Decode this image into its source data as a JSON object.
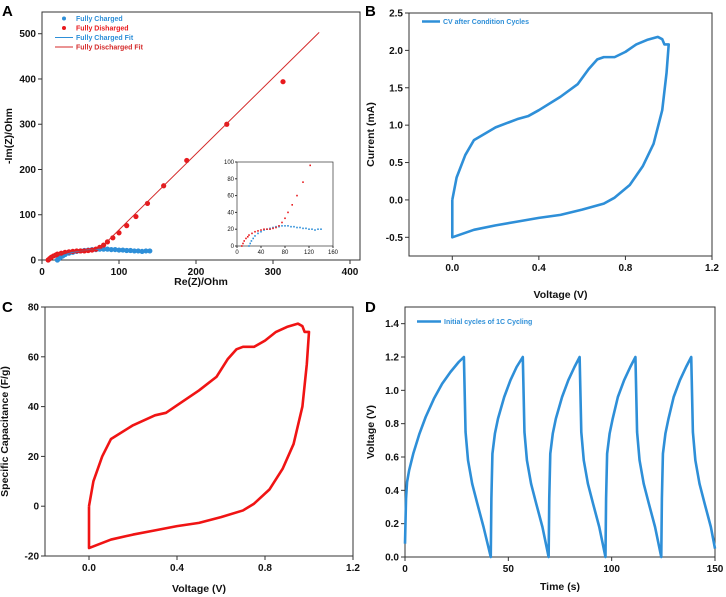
{
  "panel_labels": [
    "A",
    "B",
    "C",
    "D"
  ],
  "chart_data": [
    {
      "type": "scatter",
      "title": "",
      "xlabel": "Re(Z)/Ohm",
      "ylabel": "-Im(Z)/Ohm",
      "xlim": [
        0,
        413
      ],
      "ylim": [
        0,
        548
      ],
      "xticks": [
        0,
        100,
        200,
        300,
        400
      ],
      "xtick_labels": [
        "0",
        "100",
        "200",
        "300",
        "400"
      ],
      "yticks": [
        0,
        100,
        200,
        300,
        400,
        500
      ],
      "ytick_labels": [
        "0",
        "100",
        "200",
        "300",
        "400",
        "500"
      ],
      "legend_position": "top-left",
      "series": [
        {
          "name": "Fully Charged",
          "kind": "scatter",
          "color": "#2e8fd8",
          "points": [
            [
              20,
              0
            ],
            [
              22,
              3
            ],
            [
              24,
              6
            ],
            [
              27,
              9
            ],
            [
              30,
              12
            ],
            [
              35,
              15
            ],
            [
              40,
              17
            ],
            [
              45,
              19
            ],
            [
              50,
              20
            ],
            [
              55,
              21
            ],
            [
              60,
              22
            ],
            [
              65,
              23
            ],
            [
              70,
              23
            ],
            [
              75,
              24
            ],
            [
              80,
              24
            ],
            [
              85,
              24
            ],
            [
              90,
              23
            ],
            [
              95,
              23
            ],
            [
              100,
              22
            ],
            [
              105,
              22
            ],
            [
              110,
              21
            ],
            [
              115,
              21
            ],
            [
              120,
              20
            ],
            [
              125,
              20
            ],
            [
              130,
              19
            ],
            [
              135,
              20
            ],
            [
              140,
              20
            ]
          ]
        },
        {
          "name": "Fully Disharged",
          "kind": "scatter",
          "color": "#e8191d",
          "points": [
            [
              8,
              0
            ],
            [
              10,
              3
            ],
            [
              12,
              6
            ],
            [
              15,
              9
            ],
            [
              18,
              11
            ],
            [
              20,
              13
            ],
            [
              25,
              15
            ],
            [
              30,
              17
            ],
            [
              35,
              18
            ],
            [
              40,
              19
            ],
            [
              45,
              20
            ],
            [
              50,
              20
            ],
            [
              55,
              20
            ],
            [
              60,
              21
            ],
            [
              65,
              22
            ],
            [
              70,
              24
            ],
            [
              75,
              28
            ],
            [
              80,
              33
            ],
            [
              85,
              40
            ],
            [
              92,
              49
            ],
            [
              100,
              60
            ],
            [
              110,
              76
            ],
            [
              122,
              96
            ],
            [
              137,
              125
            ],
            [
              158,
              164
            ],
            [
              188,
              220
            ],
            [
              240,
              300
            ],
            [
              313,
              394
            ]
          ]
        },
        {
          "name": "Fully Charged Fit",
          "kind": "line",
          "color": "#2e8fd8",
          "points": [
            [
              20,
              0
            ],
            [
              25,
              7
            ],
            [
              30,
              12
            ],
            [
              40,
              17
            ],
            [
              50,
              20
            ],
            [
              60,
              22
            ],
            [
              75,
              24
            ],
            [
              90,
              23
            ],
            [
              110,
              21
            ],
            [
              140,
              19.5
            ]
          ]
        },
        {
          "name": "Fully Discharged Fit",
          "kind": "line",
          "color": "#d42a2a",
          "points": [
            [
              8,
              0
            ],
            [
              12,
              6
            ],
            [
              20,
              13
            ],
            [
              30,
              17
            ],
            [
              45,
              20
            ],
            [
              60,
              21
            ],
            [
              70,
              24
            ],
            [
              80,
              33
            ],
            [
              360,
              503
            ]
          ]
        }
      ],
      "inset": {
        "xlim": [
          0,
          160
        ],
        "ylim": [
          0,
          100
        ],
        "xticks": [
          0,
          40,
          80,
          120,
          160
        ],
        "xtick_labels": [
          "0",
          "40",
          "80",
          "120",
          "160"
        ],
        "yticks": [
          0,
          20,
          40,
          60,
          80,
          100
        ],
        "ytick_labels": [
          "0",
          "20",
          "40",
          "60",
          "80",
          "100"
        ]
      }
    },
    {
      "type": "line",
      "title": "",
      "xlabel": "Voltage (V)",
      "ylabel": "Current (mA)",
      "xlim": [
        -0.2,
        1.2
      ],
      "ylim": [
        -0.75,
        2.5
      ],
      "xticks": [
        0,
        0.4,
        0.8,
        1.2
      ],
      "xtick_labels": [
        "0.0",
        "0.4",
        "0.8",
        "1.2"
      ],
      "yticks": [
        -0.5,
        0,
        0.5,
        1,
        1.5,
        2,
        2.5
      ],
      "ytick_labels": [
        "-0.5",
        "0.0",
        "0.5",
        "1.0",
        "1.5",
        "2.0",
        "2.5"
      ],
      "legend_position": "top-left",
      "series": [
        {
          "name": "CV after Condition Cycles",
          "kind": "line",
          "color": "#2e8fd8",
          "points": [
            [
              0,
              0
            ],
            [
              0.02,
              0.3
            ],
            [
              0.06,
              0.6
            ],
            [
              0.1,
              0.8
            ],
            [
              0.2,
              0.97
            ],
            [
              0.3,
              1.08
            ],
            [
              0.35,
              1.12
            ],
            [
              0.4,
              1.2
            ],
            [
              0.5,
              1.38
            ],
            [
              0.58,
              1.55
            ],
            [
              0.63,
              1.75
            ],
            [
              0.67,
              1.88
            ],
            [
              0.7,
              1.91
            ],
            [
              0.75,
              1.91
            ],
            [
              0.8,
              1.98
            ],
            [
              0.85,
              2.08
            ],
            [
              0.9,
              2.14
            ],
            [
              0.95,
              2.18
            ],
            [
              0.97,
              2.15
            ],
            [
              0.98,
              2.08
            ],
            [
              1.0,
              2.08
            ],
            [
              0.99,
              1.7
            ],
            [
              0.97,
              1.2
            ],
            [
              0.93,
              0.75
            ],
            [
              0.88,
              0.45
            ],
            [
              0.82,
              0.2
            ],
            [
              0.75,
              0.03
            ],
            [
              0.7,
              -0.05
            ],
            [
              0.6,
              -0.13
            ],
            [
              0.5,
              -0.2
            ],
            [
              0.4,
              -0.24
            ],
            [
              0.3,
              -0.29
            ],
            [
              0.2,
              -0.34
            ],
            [
              0.1,
              -0.4
            ],
            [
              0,
              -0.5
            ],
            [
              0,
              0
            ]
          ]
        }
      ]
    },
    {
      "type": "line",
      "title": "",
      "xlabel": "Voltage (V)",
      "ylabel": "Specific Capacitance (F/g)",
      "xlim": [
        -0.2,
        1.2
      ],
      "ylim": [
        -20,
        80
      ],
      "xticks": [
        0,
        0.4,
        0.8,
        1.2
      ],
      "xtick_labels": [
        "0.0",
        "0.4",
        "0.8",
        "1.2"
      ],
      "yticks": [
        -20,
        0,
        20,
        40,
        60,
        80
      ],
      "ytick_labels": [
        "-20",
        "0",
        "20",
        "40",
        "60",
        "80"
      ],
      "series": [
        {
          "name": "Specific Capacitance",
          "kind": "line",
          "color": "#f01414",
          "points": [
            [
              0,
              0
            ],
            [
              0.02,
              10
            ],
            [
              0.06,
              20
            ],
            [
              0.1,
              27
            ],
            [
              0.2,
              32.5
            ],
            [
              0.3,
              36.5
            ],
            [
              0.35,
              37.5
            ],
            [
              0.4,
              40.5
            ],
            [
              0.5,
              46.5
            ],
            [
              0.58,
              52
            ],
            [
              0.63,
              59
            ],
            [
              0.67,
              63
            ],
            [
              0.7,
              64
            ],
            [
              0.75,
              64
            ],
            [
              0.8,
              66.5
            ],
            [
              0.85,
              70
            ],
            [
              0.9,
              72
            ],
            [
              0.95,
              73.3
            ],
            [
              0.97,
              72.3
            ],
            [
              0.98,
              70
            ],
            [
              1.0,
              70
            ],
            [
              0.99,
              57
            ],
            [
              0.97,
              40
            ],
            [
              0.93,
              25
            ],
            [
              0.88,
              15
            ],
            [
              0.82,
              6.7
            ],
            [
              0.75,
              1
            ],
            [
              0.7,
              -1.7
            ],
            [
              0.6,
              -4.4
            ],
            [
              0.5,
              -6.7
            ],
            [
              0.4,
              -8
            ],
            [
              0.3,
              -9.7
            ],
            [
              0.2,
              -11.4
            ],
            [
              0.1,
              -13.4
            ],
            [
              0,
              -16.8
            ],
            [
              0,
              0
            ]
          ]
        }
      ]
    },
    {
      "type": "line",
      "title": "",
      "xlabel": "Time (s)",
      "ylabel": "Voltage (V)",
      "xlim": [
        0,
        150
      ],
      "ylim": [
        0,
        1.5
      ],
      "xticks": [
        0,
        50,
        100,
        150
      ],
      "xtick_labels": [
        "0",
        "50",
        "100",
        "150"
      ],
      "yticks": [
        0,
        0.2,
        0.4,
        0.6,
        0.8,
        1.0,
        1.2,
        1.4
      ],
      "ytick_labels": [
        "0.0",
        "0.2",
        "0.4",
        "0.6",
        "0.8",
        "1.0",
        "1.2",
        "1.4"
      ],
      "legend_position": "top-left",
      "series": [
        {
          "name": "Initial cycles of 1C Cycling",
          "kind": "line",
          "color": "#2e8fd8",
          "points": [
            [
              0,
              0.08
            ],
            [
              0.5,
              0.35
            ],
            [
              1,
              0.45
            ],
            [
              2,
              0.52
            ],
            [
              4,
              0.62
            ],
            [
              7,
              0.74
            ],
            [
              10,
              0.84
            ],
            [
              14,
              0.95
            ],
            [
              18,
              1.04
            ],
            [
              22,
              1.11
            ],
            [
              26,
              1.17
            ],
            [
              28.5,
              1.2
            ],
            [
              29.3,
              0.75
            ],
            [
              30.5,
              0.58
            ],
            [
              32.5,
              0.44
            ],
            [
              35,
              0.32
            ],
            [
              38,
              0.18
            ],
            [
              41.5,
              0
            ],
            [
              41.8,
              0.35
            ],
            [
              42.3,
              0.62
            ],
            [
              43.5,
              0.74
            ],
            [
              45,
              0.83
            ],
            [
              48,
              0.96
            ],
            [
              51,
              1.06
            ],
            [
              54,
              1.14
            ],
            [
              57,
              1.2
            ],
            [
              57.8,
              0.75
            ],
            [
              59,
              0.58
            ],
            [
              61,
              0.44
            ],
            [
              63.5,
              0.32
            ],
            [
              66.5,
              0.18
            ],
            [
              69.5,
              0
            ],
            [
              69.8,
              0.35
            ],
            [
              70.3,
              0.62
            ],
            [
              71.5,
              0.74
            ],
            [
              73,
              0.83
            ],
            [
              76,
              0.96
            ],
            [
              79,
              1.06
            ],
            [
              82,
              1.14
            ],
            [
              84.5,
              1.2
            ],
            [
              85.3,
              0.75
            ],
            [
              86.5,
              0.58
            ],
            [
              88.5,
              0.44
            ],
            [
              91,
              0.32
            ],
            [
              94,
              0.18
            ],
            [
              97,
              0
            ],
            [
              97.3,
              0.35
            ],
            [
              97.8,
              0.62
            ],
            [
              99,
              0.74
            ],
            [
              100.5,
              0.83
            ],
            [
              103,
              0.96
            ],
            [
              106,
              1.06
            ],
            [
              109,
              1.14
            ],
            [
              111.5,
              1.2
            ],
            [
              112.3,
              0.75
            ],
            [
              113.5,
              0.58
            ],
            [
              115.5,
              0.44
            ],
            [
              118,
              0.32
            ],
            [
              121,
              0.18
            ],
            [
              124,
              0
            ],
            [
              124.3,
              0.35
            ],
            [
              124.8,
              0.62
            ],
            [
              126,
              0.74
            ],
            [
              127.5,
              0.83
            ],
            [
              130,
              0.96
            ],
            [
              133,
              1.06
            ],
            [
              136,
              1.14
            ],
            [
              138.5,
              1.2
            ],
            [
              139.3,
              0.75
            ],
            [
              140.5,
              0.58
            ],
            [
              142.5,
              0.44
            ],
            [
              145,
              0.32
            ],
            [
              148,
              0.18
            ],
            [
              150,
              0.05
            ]
          ]
        }
      ]
    }
  ]
}
